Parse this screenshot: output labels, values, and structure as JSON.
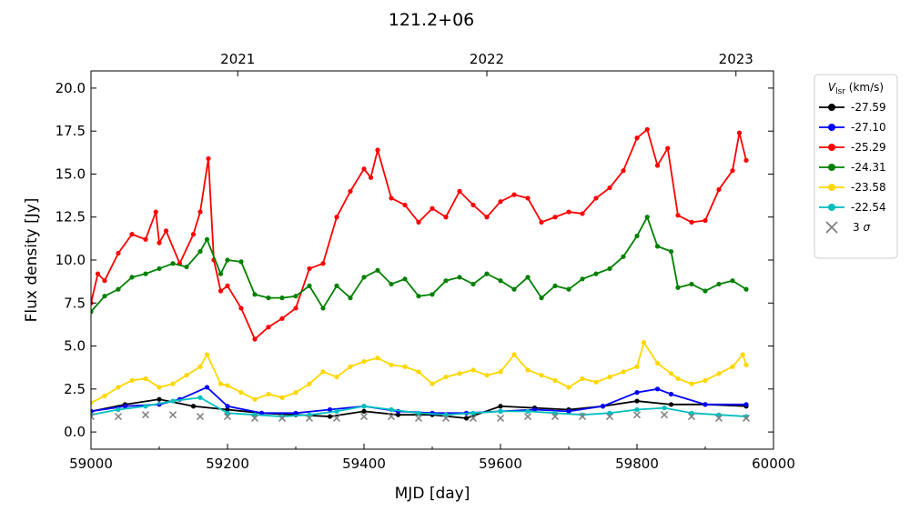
{
  "chart_data": {
    "type": "line",
    "title": "121.2+06",
    "xlabel": "MJD [day]",
    "ylabel": "Flux density [Jy]",
    "xlim": [
      59000,
      60000
    ],
    "ylim": [
      -1,
      21
    ],
    "x_ticks": [
      "59000",
      "59200",
      "59400",
      "59600",
      "59800",
      "60000"
    ],
    "y_ticks": [
      "0.0",
      "2.5",
      "5.0",
      "7.5",
      "10.0",
      "12.5",
      "15.0",
      "17.5",
      "20.0"
    ],
    "top_axis": {
      "labels": [
        "2021",
        "2022",
        "2023"
      ],
      "mjd": [
        59215,
        59580,
        59945
      ]
    },
    "grid": false,
    "legend": {
      "title": "V_lsr (km/s)",
      "title_main": "V",
      "title_sub": "lsr",
      "title_suffix": " (km/s)",
      "placement": "outside-right"
    },
    "series": [
      {
        "name": "-27.59",
        "color": "#000000",
        "x": [
          59000,
          59050,
          59100,
          59150,
          59200,
          59250,
          59300,
          59350,
          59400,
          59450,
          59500,
          59550,
          59600,
          59650,
          59700,
          59750,
          59800,
          59850,
          59900,
          59960
        ],
        "y": [
          1.2,
          1.6,
          1.9,
          1.5,
          1.3,
          1.1,
          1.0,
          0.9,
          1.2,
          1.0,
          1.0,
          0.8,
          1.5,
          1.4,
          1.3,
          1.5,
          1.8,
          1.6,
          1.6,
          1.5
        ]
      },
      {
        "name": "-27.10",
        "color": "#0000ff",
        "x": [
          59000,
          59050,
          59100,
          59130,
          59170,
          59200,
          59250,
          59300,
          59350,
          59400,
          59450,
          59500,
          59550,
          59600,
          59650,
          59700,
          59750,
          59800,
          59830,
          59850,
          59900,
          59960
        ],
        "y": [
          1.2,
          1.5,
          1.6,
          1.9,
          2.6,
          1.5,
          1.1,
          1.1,
          1.3,
          1.5,
          1.2,
          1.1,
          1.1,
          1.2,
          1.3,
          1.2,
          1.5,
          2.3,
          2.5,
          2.2,
          1.6,
          1.6
        ]
      },
      {
        "name": "-25.29",
        "color": "#ff0000",
        "x": [
          59000,
          59010,
          59020,
          59040,
          59060,
          59080,
          59095,
          59100,
          59110,
          59130,
          59150,
          59160,
          59172,
          59180,
          59190,
          59200,
          59220,
          59240,
          59260,
          59280,
          59300,
          59320,
          59340,
          59360,
          59380,
          59400,
          59410,
          59420,
          59440,
          59460,
          59480,
          59500,
          59520,
          59540,
          59560,
          59580,
          59600,
          59620,
          59640,
          59660,
          59680,
          59700,
          59720,
          59740,
          59760,
          59780,
          59800,
          59815,
          59830,
          59845,
          59860,
          59880,
          59900,
          59920,
          59940,
          59950,
          59960
        ],
        "y": [
          7.5,
          9.2,
          8.8,
          10.4,
          11.5,
          11.2,
          12.8,
          11.0,
          11.7,
          9.8,
          11.5,
          12.8,
          15.9,
          10.0,
          8.2,
          8.5,
          7.2,
          5.4,
          6.1,
          6.6,
          7.2,
          9.5,
          9.8,
          12.5,
          14.0,
          15.3,
          14.8,
          16.4,
          13.6,
          13.2,
          12.2,
          13.0,
          12.5,
          14.0,
          13.2,
          12.5,
          13.4,
          13.8,
          13.6,
          12.2,
          12.5,
          12.8,
          12.7,
          13.6,
          14.2,
          15.2,
          17.1,
          17.6,
          15.5,
          16.5,
          12.6,
          12.2,
          12.3,
          14.1,
          15.2,
          17.4,
          15.8
        ]
      },
      {
        "name": "-24.31",
        "color": "#008000",
        "x": [
          59000,
          59020,
          59040,
          59060,
          59080,
          59100,
          59120,
          59140,
          59160,
          59170,
          59190,
          59200,
          59220,
          59240,
          59260,
          59280,
          59300,
          59320,
          59340,
          59360,
          59380,
          59400,
          59420,
          59440,
          59460,
          59480,
          59500,
          59520,
          59540,
          59560,
          59580,
          59600,
          59620,
          59640,
          59660,
          59680,
          59700,
          59720,
          59740,
          59760,
          59780,
          59800,
          59815,
          59830,
          59850,
          59860,
          59880,
          59900,
          59920,
          59940,
          59960
        ],
        "y": [
          7.0,
          7.9,
          8.3,
          9.0,
          9.2,
          9.5,
          9.8,
          9.6,
          10.5,
          11.2,
          9.2,
          10.0,
          9.9,
          8.0,
          7.8,
          7.8,
          7.9,
          8.5,
          7.2,
          8.5,
          7.8,
          9.0,
          9.4,
          8.6,
          8.9,
          7.9,
          8.0,
          8.8,
          9.0,
          8.6,
          9.2,
          8.8,
          8.3,
          9.0,
          7.8,
          8.5,
          8.3,
          8.9,
          9.2,
          9.5,
          10.2,
          11.4,
          12.5,
          10.8,
          10.5,
          8.4,
          8.6,
          8.2,
          8.6,
          8.8,
          8.3
        ]
      },
      {
        "name": "-23.58",
        "color": "#ffd700",
        "x": [
          59000,
          59020,
          59040,
          59060,
          59080,
          59100,
          59120,
          59140,
          59160,
          59170,
          59190,
          59200,
          59220,
          59240,
          59260,
          59280,
          59300,
          59320,
          59340,
          59360,
          59380,
          59400,
          59420,
          59440,
          59460,
          59480,
          59500,
          59520,
          59540,
          59560,
          59580,
          59600,
          59620,
          59640,
          59660,
          59680,
          59700,
          59720,
          59740,
          59760,
          59780,
          59800,
          59810,
          59830,
          59850,
          59860,
          59880,
          59900,
          59920,
          59940,
          59955,
          59960
        ],
        "y": [
          1.7,
          2.1,
          2.6,
          3.0,
          3.1,
          2.6,
          2.8,
          3.3,
          3.8,
          4.5,
          2.8,
          2.7,
          2.3,
          1.9,
          2.2,
          2.0,
          2.3,
          2.8,
          3.5,
          3.2,
          3.8,
          4.1,
          4.3,
          3.9,
          3.8,
          3.5,
          2.8,
          3.2,
          3.4,
          3.6,
          3.3,
          3.5,
          4.5,
          3.6,
          3.3,
          3.0,
          2.6,
          3.1,
          2.9,
          3.2,
          3.5,
          3.8,
          5.2,
          4.0,
          3.4,
          3.1,
          2.8,
          3.0,
          3.4,
          3.8,
          4.5,
          3.9
        ]
      },
      {
        "name": "-22.54",
        "color": "#00bfbf",
        "x": [
          59000,
          59040,
          59080,
          59120,
          59160,
          59200,
          59240,
          59280,
          59320,
          59360,
          59400,
          59440,
          59480,
          59520,
          59560,
          59600,
          59640,
          59680,
          59720,
          59760,
          59800,
          59840,
          59880,
          59920,
          59960
        ],
        "y": [
          1.0,
          1.3,
          1.5,
          1.8,
          2.0,
          1.1,
          1.0,
          0.9,
          1.0,
          1.2,
          1.5,
          1.3,
          1.1,
          1.0,
          1.1,
          1.2,
          1.2,
          1.1,
          1.0,
          1.1,
          1.3,
          1.4,
          1.1,
          1.0,
          0.9
        ]
      },
      {
        "name": "3 σ",
        "name_main": "3 ",
        "name_italic": "σ",
        "color": "#808080",
        "marker": "x",
        "x": [
          59000,
          59040,
          59080,
          59120,
          59160,
          59200,
          59240,
          59280,
          59320,
          59360,
          59400,
          59440,
          59480,
          59520,
          59560,
          59600,
          59640,
          59680,
          59720,
          59760,
          59800,
          59840,
          59880,
          59920,
          59960
        ],
        "y": [
          0.9,
          0.9,
          1.0,
          1.0,
          0.9,
          0.9,
          0.8,
          0.8,
          0.8,
          0.8,
          0.9,
          0.9,
          0.8,
          0.8,
          0.8,
          0.8,
          0.9,
          0.9,
          0.9,
          0.9,
          1.0,
          1.0,
          0.9,
          0.8,
          0.8
        ]
      }
    ]
  }
}
